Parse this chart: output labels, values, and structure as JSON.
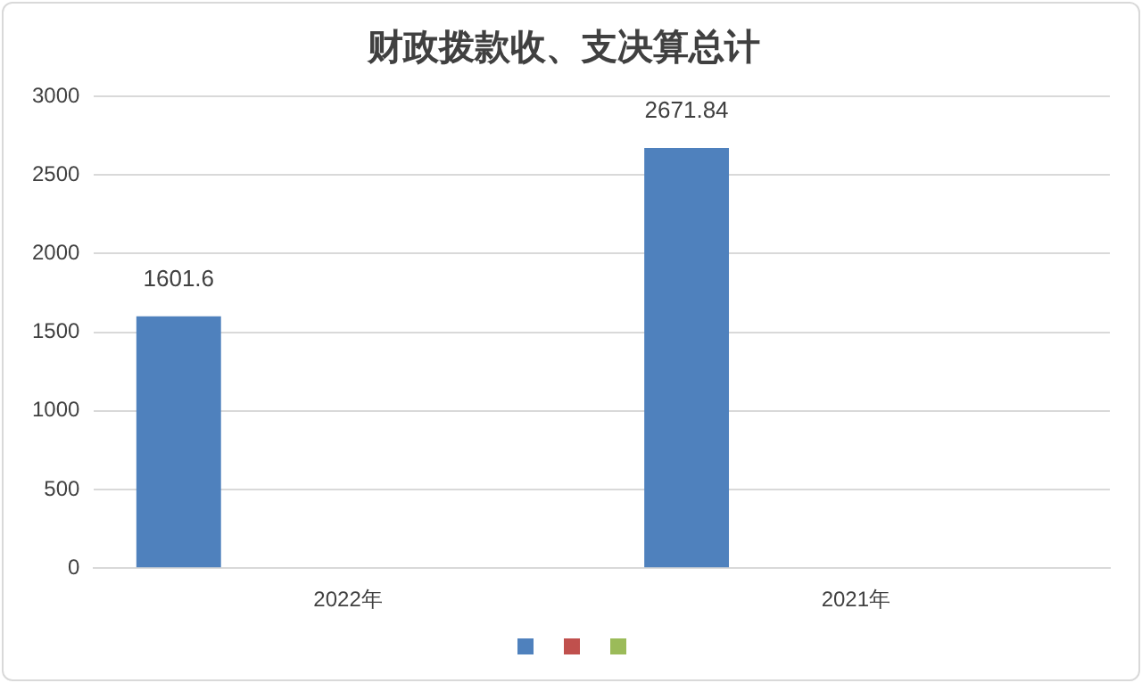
{
  "chart_data": {
    "type": "bar",
    "title": "财政拨款收、支决算总计",
    "categories": [
      "2022年",
      "2021年"
    ],
    "series": [
      {
        "color": "#4f81bd",
        "values": [
          1601.6,
          2671.84
        ]
      },
      {
        "color": "#c0504d",
        "values": [
          null,
          null
        ]
      },
      {
        "color": "#9bbb59",
        "values": [
          null,
          null
        ]
      }
    ],
    "ylim": [
      0,
      3000
    ],
    "yticks": [
      0,
      500,
      1000,
      1500,
      2000,
      2500,
      3000
    ],
    "grid": "y",
    "data_labels": true
  }
}
